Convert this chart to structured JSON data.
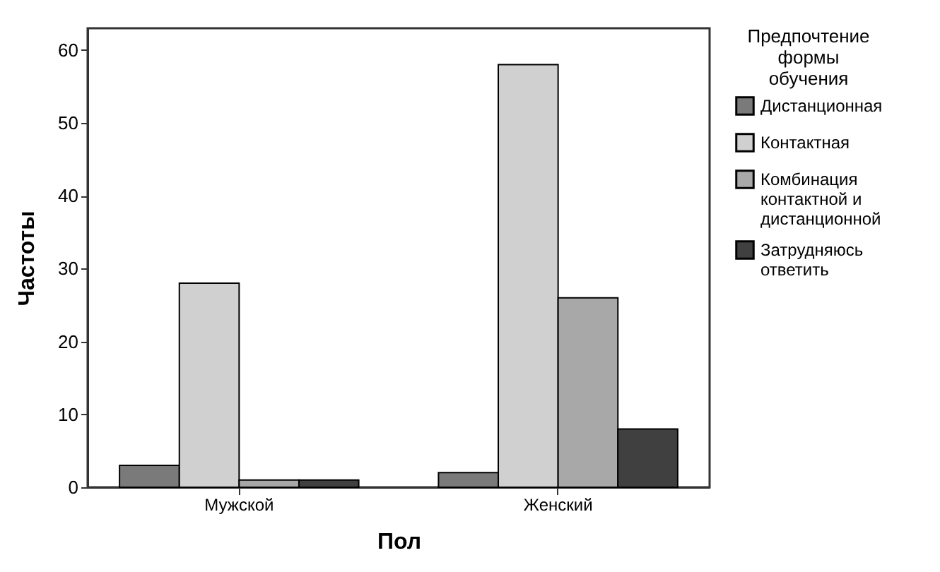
{
  "chart_data": {
    "type": "bar",
    "xlabel": "Пол",
    "ylabel": "Частоты",
    "legend_title": "Предпочтение формы обучения",
    "categories": [
      "Мужской",
      "Женский"
    ],
    "series": [
      {
        "name": "Дистанционная",
        "color": "#7a7a7a",
        "values": [
          3,
          2
        ]
      },
      {
        "name": "Контактная",
        "color": "#d0d0d0",
        "values": [
          28,
          58
        ]
      },
      {
        "name": "Комбинация контактной и дистанционной",
        "color": "#a8a8a8",
        "values": [
          1,
          26
        ]
      },
      {
        "name": "Затрудняюсь ответить",
        "color": "#404040",
        "values": [
          1,
          8
        ]
      }
    ],
    "ylim": [
      0,
      63
    ],
    "yticks": [
      0,
      10,
      20,
      30,
      40,
      50,
      60
    ],
    "grid": false,
    "legend": "right"
  }
}
